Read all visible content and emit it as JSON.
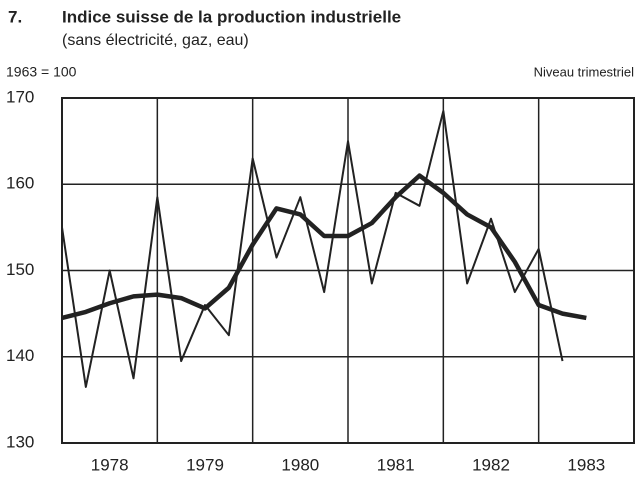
{
  "chart_data": {
    "type": "line",
    "number": "7.",
    "title": "Indice suisse de la  production industrielle",
    "subtitle": "(sans électricité, gaz, eau)",
    "base_note": "1963 = 100",
    "frequency_note": "Niveau trimestriel",
    "x": [
      1978,
      1978.25,
      1978.5,
      1978.75,
      1979,
      1979.25,
      1979.5,
      1979.75,
      1980,
      1980.25,
      1980.5,
      1980.75,
      1981,
      1981.25,
      1981.5,
      1981.75,
      1982,
      1982.25,
      1982.5,
      1982.75,
      1983,
      1983.25,
      1983.5
    ],
    "series": [
      {
        "color": "#222222",
        "width": 2,
        "values": [
          155,
          136.5,
          150,
          137.5,
          158.5,
          139.5,
          146,
          142.5,
          163,
          151.5,
          158.5,
          147.5,
          165,
          148.5,
          159,
          157.5,
          168.5,
          148.5,
          156,
          147.5,
          152.5,
          139.5,
          null
        ]
      },
      {
        "color": "#222222",
        "width": 4.5,
        "values": [
          144.5,
          145.2,
          146.2,
          147,
          147.2,
          146.8,
          145.6,
          148,
          153,
          157.2,
          156.5,
          154,
          154,
          155.5,
          158.5,
          161,
          159,
          156.5,
          155,
          151,
          146,
          145,
          144.5
        ]
      }
    ],
    "xlim": [
      1978,
      1984
    ],
    "xticks": [
      {
        "value": 1978.5,
        "label": "1978"
      },
      {
        "value": 1979.5,
        "label": "1979"
      },
      {
        "value": 1980.5,
        "label": "1980"
      },
      {
        "value": 1981.5,
        "label": "1981"
      },
      {
        "value": 1982.5,
        "label": "1982"
      },
      {
        "value": 1983.5,
        "label": "1983"
      }
    ],
    "xgrid": [
      1979,
      1980,
      1981,
      1982,
      1983
    ],
    "ylim": [
      130,
      170
    ],
    "yticks": [
      130,
      140,
      150,
      160,
      170
    ],
    "grid": true
  }
}
